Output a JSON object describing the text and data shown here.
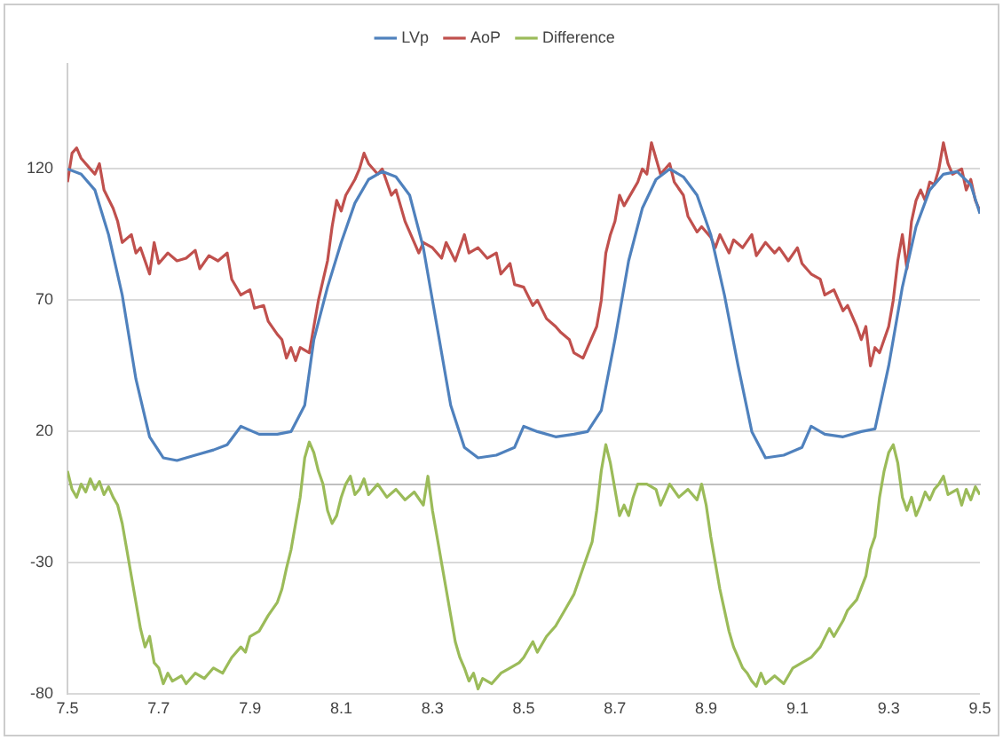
{
  "chart_data": {
    "type": "line",
    "xlim": [
      7.5,
      9.5
    ],
    "xticks": [
      7.5,
      7.7,
      7.9,
      8.1,
      8.3,
      8.5,
      8.7,
      8.9,
      9.1,
      9.3,
      9.5
    ],
    "ylim": [
      -80,
      160
    ],
    "yticks": [
      -80,
      -30,
      20,
      70,
      120
    ],
    "grid": "y",
    "legend": "top",
    "marker": "none",
    "series": [
      {
        "name": "LVp",
        "color": "#4f81bd",
        "x": [
          7.5,
          7.53,
          7.56,
          7.59,
          7.62,
          7.65,
          7.68,
          7.71,
          7.74,
          7.78,
          7.82,
          7.85,
          7.88,
          7.92,
          7.96,
          7.99,
          8.02,
          8.04,
          8.07,
          8.1,
          8.13,
          8.16,
          8.19,
          8.22,
          8.25,
          8.28,
          8.31,
          8.34,
          8.37,
          8.4,
          8.44,
          8.48,
          8.5,
          8.53,
          8.57,
          8.61,
          8.64,
          8.67,
          8.7,
          8.73,
          8.76,
          8.79,
          8.82,
          8.85,
          8.88,
          8.91,
          8.94,
          8.97,
          9.0,
          9.03,
          9.07,
          9.11,
          9.13,
          9.16,
          9.2,
          9.24,
          9.27,
          9.3,
          9.33,
          9.36,
          9.39,
          9.42,
          9.45,
          9.48,
          9.5
        ],
        "values": [
          120,
          118,
          112,
          95,
          72,
          40,
          18,
          10,
          9,
          11,
          13,
          15,
          22,
          19,
          19,
          20,
          30,
          55,
          75,
          92,
          107,
          116,
          119,
          117,
          110,
          90,
          60,
          30,
          14,
          10,
          11,
          14,
          22,
          20,
          18,
          19,
          20,
          28,
          55,
          85,
          105,
          116,
          120,
          117,
          110,
          95,
          72,
          45,
          20,
          10,
          11,
          14,
          22,
          19,
          18,
          20,
          21,
          45,
          75,
          98,
          112,
          118,
          119,
          114,
          103
        ]
      },
      {
        "name": "AoP",
        "color": "#c0504d",
        "x": [
          7.5,
          7.51,
          7.52,
          7.53,
          7.55,
          7.56,
          7.57,
          7.58,
          7.6,
          7.61,
          7.62,
          7.64,
          7.65,
          7.66,
          7.67,
          7.68,
          7.69,
          7.7,
          7.72,
          7.74,
          7.76,
          7.78,
          7.79,
          7.81,
          7.83,
          7.85,
          7.86,
          7.88,
          7.9,
          7.91,
          7.93,
          7.94,
          7.96,
          7.97,
          7.98,
          7.99,
          8.0,
          8.01,
          8.03,
          8.04,
          8.05,
          8.07,
          8.08,
          8.09,
          8.1,
          8.11,
          8.13,
          8.14,
          8.15,
          8.16,
          8.18,
          8.19,
          8.21,
          8.22,
          8.24,
          8.25,
          8.27,
          8.28,
          8.3,
          8.32,
          8.33,
          8.35,
          8.37,
          8.38,
          8.4,
          8.42,
          8.44,
          8.45,
          8.47,
          8.48,
          8.5,
          8.52,
          8.53,
          8.55,
          8.57,
          8.58,
          8.6,
          8.61,
          8.63,
          8.64,
          8.66,
          8.67,
          8.68,
          8.69,
          8.7,
          8.71,
          8.72,
          8.74,
          8.75,
          8.76,
          8.77,
          8.78,
          8.79,
          8.8,
          8.82,
          8.83,
          8.85,
          8.86,
          8.88,
          8.89,
          8.91,
          8.92,
          8.93,
          8.95,
          8.96,
          8.98,
          9.0,
          9.01,
          9.03,
          9.05,
          9.06,
          9.08,
          9.1,
          9.11,
          9.13,
          9.15,
          9.16,
          9.18,
          9.2,
          9.21,
          9.23,
          9.24,
          9.25,
          9.26,
          9.27,
          9.28,
          9.3,
          9.31,
          9.32,
          9.33,
          9.34,
          9.35,
          9.36,
          9.37,
          9.38,
          9.39,
          9.4,
          9.41,
          9.42,
          9.43,
          9.44,
          9.46,
          9.47,
          9.48,
          9.49,
          9.5
        ],
        "values": [
          115,
          126,
          128,
          124,
          120,
          118,
          122,
          112,
          105,
          100,
          92,
          95,
          88,
          90,
          85,
          80,
          92,
          84,
          88,
          85,
          86,
          89,
          82,
          87,
          85,
          88,
          78,
          72,
          74,
          67,
          68,
          62,
          57,
          55,
          48,
          52,
          47,
          52,
          50,
          60,
          70,
          85,
          98,
          108,
          104,
          110,
          116,
          120,
          126,
          122,
          118,
          120,
          110,
          112,
          100,
          96,
          88,
          92,
          90,
          86,
          92,
          85,
          95,
          88,
          90,
          86,
          88,
          80,
          84,
          76,
          75,
          68,
          70,
          63,
          60,
          58,
          55,
          50,
          48,
          52,
          60,
          70,
          88,
          95,
          100,
          110,
          106,
          112,
          115,
          120,
          118,
          130,
          124,
          118,
          122,
          115,
          110,
          102,
          96,
          98,
          94,
          90,
          95,
          88,
          93,
          90,
          95,
          87,
          92,
          88,
          90,
          85,
          90,
          84,
          80,
          78,
          72,
          74,
          66,
          68,
          60,
          55,
          60,
          45,
          52,
          50,
          60,
          70,
          85,
          95,
          82,
          100,
          108,
          112,
          108,
          115,
          114,
          120,
          130,
          122,
          118,
          120,
          112,
          116,
          108,
          104
        ]
      },
      {
        "name": "Difference",
        "color": "#9bbb59",
        "x": [
          7.5,
          7.51,
          7.52,
          7.53,
          7.54,
          7.55,
          7.56,
          7.57,
          7.58,
          7.59,
          7.6,
          7.61,
          7.62,
          7.63,
          7.64,
          7.65,
          7.66,
          7.67,
          7.68,
          7.69,
          7.7,
          7.71,
          7.72,
          7.73,
          7.75,
          7.76,
          7.78,
          7.8,
          7.82,
          7.84,
          7.86,
          7.88,
          7.89,
          7.9,
          7.92,
          7.94,
          7.96,
          7.97,
          7.98,
          7.99,
          8.0,
          8.01,
          8.02,
          8.03,
          8.04,
          8.05,
          8.06,
          8.07,
          8.08,
          8.09,
          8.1,
          8.11,
          8.12,
          8.13,
          8.14,
          8.15,
          8.16,
          8.18,
          8.2,
          8.22,
          8.24,
          8.26,
          8.28,
          8.29,
          8.3,
          8.31,
          8.32,
          8.33,
          8.34,
          8.35,
          8.36,
          8.37,
          8.38,
          8.39,
          8.4,
          8.41,
          8.43,
          8.45,
          8.47,
          8.49,
          8.5,
          8.52,
          8.53,
          8.55,
          8.57,
          8.59,
          8.61,
          8.63,
          8.65,
          8.66,
          8.67,
          8.68,
          8.69,
          8.7,
          8.71,
          8.72,
          8.73,
          8.74,
          8.75,
          8.77,
          8.79,
          8.8,
          8.82,
          8.84,
          8.86,
          8.88,
          8.89,
          8.9,
          8.91,
          8.92,
          8.93,
          8.94,
          8.95,
          8.96,
          8.97,
          8.98,
          8.99,
          9.0,
          9.01,
          9.02,
          9.03,
          9.05,
          9.07,
          9.09,
          9.11,
          9.13,
          9.15,
          9.17,
          9.18,
          9.2,
          9.21,
          9.23,
          9.25,
          9.26,
          9.27,
          9.28,
          9.29,
          9.3,
          9.31,
          9.32,
          9.33,
          9.34,
          9.35,
          9.36,
          9.37,
          9.38,
          9.39,
          9.4,
          9.41,
          9.42,
          9.43,
          9.45,
          9.46,
          9.47,
          9.48,
          9.49,
          9.5
        ],
        "values": [
          5,
          -2,
          -5,
          0,
          -3,
          2,
          -2,
          1,
          -4,
          -1,
          -5,
          -8,
          -15,
          -25,
          -35,
          -45,
          -55,
          -62,
          -58,
          -68,
          -70,
          -76,
          -72,
          -75,
          -73,
          -76,
          -72,
          -74,
          -70,
          -72,
          -66,
          -62,
          -64,
          -58,
          -56,
          -50,
          -45,
          -40,
          -32,
          -25,
          -15,
          -5,
          10,
          16,
          12,
          5,
          0,
          -10,
          -15,
          -12,
          -5,
          0,
          3,
          -4,
          -2,
          2,
          -4,
          0,
          -5,
          -2,
          -6,
          -3,
          -8,
          3,
          -10,
          -20,
          -30,
          -40,
          -50,
          -60,
          -66,
          -70,
          -75,
          -72,
          -78,
          -74,
          -76,
          -72,
          -70,
          -68,
          -66,
          -60,
          -64,
          -58,
          -54,
          -48,
          -42,
          -32,
          -22,
          -10,
          5,
          15,
          8,
          -2,
          -12,
          -8,
          -12,
          -5,
          0,
          0,
          -2,
          -8,
          0,
          -5,
          -2,
          -6,
          0,
          -8,
          -20,
          -30,
          -40,
          -48,
          -56,
          -62,
          -66,
          -70,
          -72,
          -75,
          -77,
          -72,
          -76,
          -73,
          -76,
          -70,
          -68,
          -66,
          -62,
          -55,
          -58,
          -52,
          -48,
          -44,
          -35,
          -25,
          -20,
          -5,
          5,
          12,
          15,
          8,
          -5,
          -10,
          -5,
          -12,
          -8,
          -3,
          -6,
          -2,
          0,
          3,
          -4,
          -2,
          -8,
          -2,
          -6,
          -1,
          -4
        ]
      }
    ]
  }
}
